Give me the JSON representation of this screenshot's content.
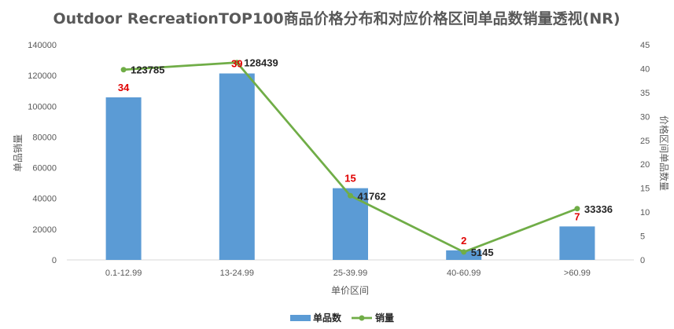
{
  "chart_data": {
    "type": "bar",
    "title": "Outdoor RecreationTOP100商品价格分布和对应价格区间单品数销量透视(NR)",
    "xlabel": "单价区间",
    "ylabel": "单品销量",
    "y2label": "价格区间单品数量",
    "categories": [
      "0.1-12.99",
      "13-24.99",
      "25-39.99",
      "40-60.99",
      ">60.99"
    ],
    "series": [
      {
        "name": "单品数",
        "type": "bar",
        "axis": "y2",
        "values": [
          34,
          39,
          15,
          2,
          7
        ],
        "color": "#5b9bd5"
      },
      {
        "name": "销量",
        "type": "line",
        "axis": "y",
        "values": [
          123785,
          128439,
          41762,
          5145,
          33336
        ],
        "color": "#70ad47"
      }
    ],
    "ylim": [
      0,
      140000
    ],
    "yticks": [
      0,
      20000,
      40000,
      60000,
      80000,
      100000,
      120000,
      140000
    ],
    "y2lim": [
      0,
      45
    ],
    "y2ticks": [
      0,
      5,
      10,
      15,
      20,
      25,
      30,
      35,
      40,
      45
    ],
    "grid": false,
    "legend": "bottom"
  }
}
